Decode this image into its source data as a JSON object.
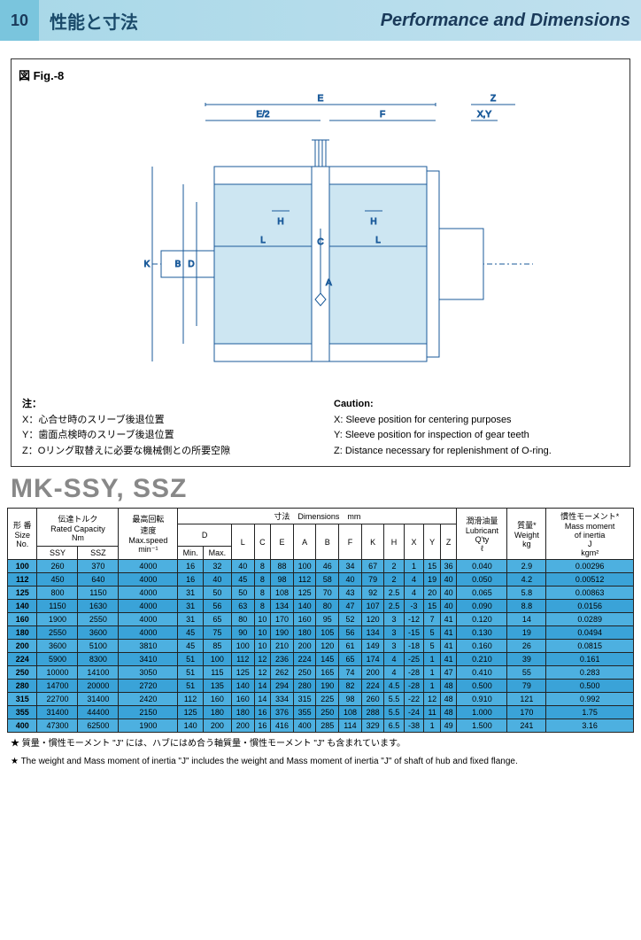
{
  "header": {
    "section_num": "10",
    "title_jp": "性能と寸法",
    "title_en": "Performance and Dimensions"
  },
  "figure": {
    "label": "図 Fig.-8",
    "dim_labels": [
      "E",
      "E/2",
      "F",
      "Z",
      "X,Y",
      "H",
      "L",
      "C",
      "K",
      "B",
      "D",
      "A"
    ],
    "stroke": "#1a5a9a",
    "fill": "#cde6f2"
  },
  "notes": {
    "jp": {
      "hdr": "注：",
      "x": "X：心合せ時のスリーブ後退位置",
      "y": "Y：歯面点検時のスリーブ後退位置",
      "z": "Z：Oリング取替えに必要な機械側との所要空隙"
    },
    "en": {
      "hdr": "Caution:",
      "x": "X: Sleeve position for centering purposes",
      "y": "Y: Sleeve position for inspection of gear teeth",
      "z": "Z: Distance necessary for replenishment of O-ring."
    }
  },
  "model_title": "MK-SSY, SSZ",
  "table": {
    "header": {
      "size": "形 番\nSize\nNo.",
      "rated": "伝達トルク\nRated Capacity\nNm",
      "ssy": "SSY",
      "ssz": "SSZ",
      "maxspeed": "最高回転\n速度\nMax.speed\nmin⁻¹",
      "dims": "寸法　Dimensions　mm",
      "D": "D",
      "Dmin": "Min.",
      "Dmax": "Max.",
      "L": "L",
      "C": "C",
      "E": "E",
      "A": "A",
      "B": "B",
      "F": "F",
      "K": "K",
      "H": "H",
      "X": "X",
      "Y": "Y",
      "Z": "Z",
      "lub": "潤滑油量\nLubricant\nQ'ty\nℓ",
      "weight": "質量*\nWeight\nkg",
      "inertia": "慣性モーメント*\nMass moment\nof inertia\nJ\nkgm²"
    },
    "rows": [
      {
        "no": "100",
        "ssy": "260",
        "ssz": "370",
        "ms": "4000",
        "dmin": "16",
        "dmax": "32",
        "L": "40",
        "C": "8",
        "E": "88",
        "A": "100",
        "B": "46",
        "F": "34",
        "K": "67",
        "H": "2",
        "X": "1",
        "Y": "15",
        "Z": "36",
        "lub": "0.040",
        "wt": "2.9",
        "j": "0.00296"
      },
      {
        "no": "112",
        "ssy": "450",
        "ssz": "640",
        "ms": "4000",
        "dmin": "16",
        "dmax": "40",
        "L": "45",
        "C": "8",
        "E": "98",
        "A": "112",
        "B": "58",
        "F": "40",
        "K": "79",
        "H": "2",
        "X": "4",
        "Y": "19",
        "Z": "40",
        "lub": "0.050",
        "wt": "4.2",
        "j": "0.00512"
      },
      {
        "no": "125",
        "ssy": "800",
        "ssz": "1150",
        "ms": "4000",
        "dmin": "31",
        "dmax": "50",
        "L": "50",
        "C": "8",
        "E": "108",
        "A": "125",
        "B": "70",
        "F": "43",
        "K": "92",
        "H": "2.5",
        "X": "4",
        "Y": "20",
        "Z": "40",
        "lub": "0.065",
        "wt": "5.8",
        "j": "0.00863"
      },
      {
        "no": "140",
        "ssy": "1150",
        "ssz": "1630",
        "ms": "4000",
        "dmin": "31",
        "dmax": "56",
        "L": "63",
        "C": "8",
        "E": "134",
        "A": "140",
        "B": "80",
        "F": "47",
        "K": "107",
        "H": "2.5",
        "X": "-3",
        "Y": "15",
        "Z": "40",
        "lub": "0.090",
        "wt": "8.8",
        "j": "0.0156"
      },
      {
        "no": "160",
        "ssy": "1900",
        "ssz": "2550",
        "ms": "4000",
        "dmin": "31",
        "dmax": "65",
        "L": "80",
        "C": "10",
        "E": "170",
        "A": "160",
        "B": "95",
        "F": "52",
        "K": "120",
        "H": "3",
        "X": "-12",
        "Y": "7",
        "Z": "41",
        "lub": "0.120",
        "wt": "14",
        "j": "0.0289"
      },
      {
        "no": "180",
        "ssy": "2550",
        "ssz": "3600",
        "ms": "4000",
        "dmin": "45",
        "dmax": "75",
        "L": "90",
        "C": "10",
        "E": "190",
        "A": "180",
        "B": "105",
        "F": "56",
        "K": "134",
        "H": "3",
        "X": "-15",
        "Y": "5",
        "Z": "41",
        "lub": "0.130",
        "wt": "19",
        "j": "0.0494"
      },
      {
        "no": "200",
        "ssy": "3600",
        "ssz": "5100",
        "ms": "3810",
        "dmin": "45",
        "dmax": "85",
        "L": "100",
        "C": "10",
        "E": "210",
        "A": "200",
        "B": "120",
        "F": "61",
        "K": "149",
        "H": "3",
        "X": "-18",
        "Y": "5",
        "Z": "41",
        "lub": "0.160",
        "wt": "26",
        "j": "0.0815"
      },
      {
        "no": "224",
        "ssy": "5900",
        "ssz": "8300",
        "ms": "3410",
        "dmin": "51",
        "dmax": "100",
        "L": "112",
        "C": "12",
        "E": "236",
        "A": "224",
        "B": "145",
        "F": "65",
        "K": "174",
        "H": "4",
        "X": "-25",
        "Y": "1",
        "Z": "41",
        "lub": "0.210",
        "wt": "39",
        "j": "0.161"
      },
      {
        "no": "250",
        "ssy": "10000",
        "ssz": "14100",
        "ms": "3050",
        "dmin": "51",
        "dmax": "115",
        "L": "125",
        "C": "12",
        "E": "262",
        "A": "250",
        "B": "165",
        "F": "74",
        "K": "200",
        "H": "4",
        "X": "-28",
        "Y": "1",
        "Z": "47",
        "lub": "0.410",
        "wt": "55",
        "j": "0.283"
      },
      {
        "no": "280",
        "ssy": "14700",
        "ssz": "20000",
        "ms": "2720",
        "dmin": "51",
        "dmax": "135",
        "L": "140",
        "C": "14",
        "E": "294",
        "A": "280",
        "B": "190",
        "F": "82",
        "K": "224",
        "H": "4.5",
        "X": "-28",
        "Y": "1",
        "Z": "48",
        "lub": "0.500",
        "wt": "79",
        "j": "0.500"
      },
      {
        "no": "315",
        "ssy": "22700",
        "ssz": "31400",
        "ms": "2420",
        "dmin": "112",
        "dmax": "160",
        "L": "160",
        "C": "14",
        "E": "334",
        "A": "315",
        "B": "225",
        "F": "98",
        "K": "260",
        "H": "5.5",
        "X": "-22",
        "Y": "12",
        "Z": "48",
        "lub": "0.910",
        "wt": "121",
        "j": "0.992"
      },
      {
        "no": "355",
        "ssy": "31400",
        "ssz": "44400",
        "ms": "2150",
        "dmin": "125",
        "dmax": "180",
        "L": "180",
        "C": "16",
        "E": "376",
        "A": "355",
        "B": "250",
        "F": "108",
        "K": "288",
        "H": "5.5",
        "X": "-24",
        "Y": "11",
        "Z": "48",
        "lub": "1.000",
        "wt": "170",
        "j": "1.75"
      },
      {
        "no": "400",
        "ssy": "47300",
        "ssz": "62500",
        "ms": "1900",
        "dmin": "140",
        "dmax": "200",
        "L": "200",
        "C": "16",
        "E": "416",
        "A": "400",
        "B": "285",
        "F": "114",
        "K": "329",
        "H": "6.5",
        "X": "-38",
        "Y": "1",
        "Z": "49",
        "lub": "1.500",
        "wt": "241",
        "j": "3.16"
      }
    ]
  },
  "footnotes": {
    "jp": "★ 質量・慣性モーメント \"J\" には、ハブにはめ合う軸質量・慣性モーメント \"J\" も含まれています。",
    "en": "★ The weight and Mass moment of inertia \"J\" includes the weight and Mass moment of inertia \"J\" of shaft of hub and fixed flange."
  }
}
